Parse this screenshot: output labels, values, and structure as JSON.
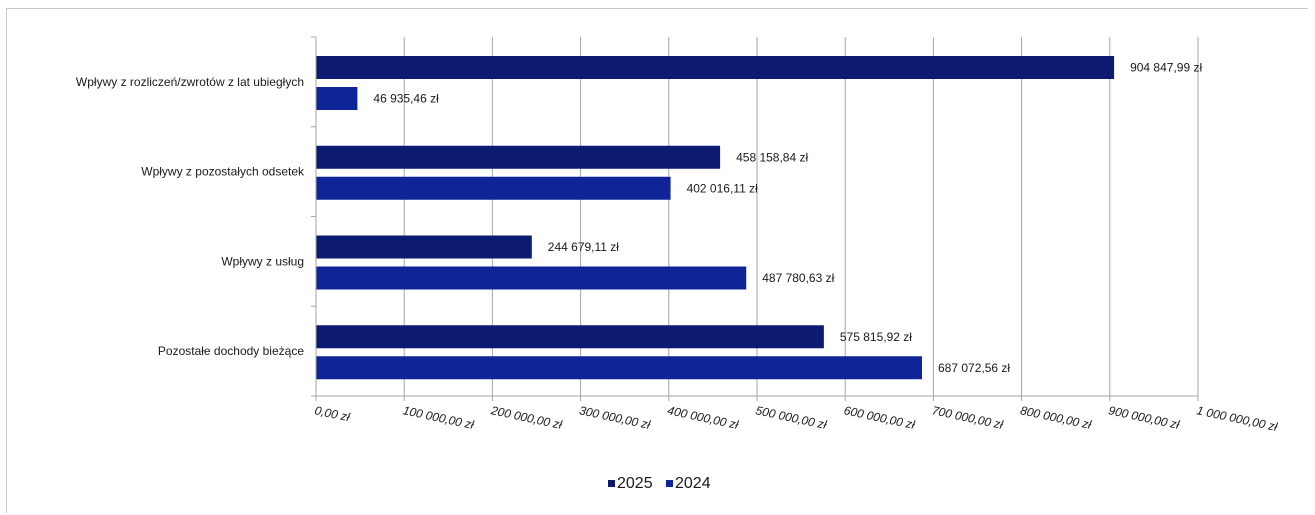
{
  "chart_data": {
    "type": "bar",
    "orientation": "horizontal",
    "categories": [
      "Wpływy z rozliczeń/zwrotów z lat ubiegłych",
      "Wpływy z pozostałych odsetek",
      "Wpływy z usług",
      "Pozostałe dochody bieżące"
    ],
    "series": [
      {
        "name": "2025",
        "color": "#0d1a72",
        "values": [
          904847.99,
          458158.84,
          244679.11,
          575815.92
        ],
        "labels": [
          "904 847,99  zł",
          "458 158,84  zł",
          "244 679,11  zł",
          "575 815,92  zł"
        ]
      },
      {
        "name": "2024",
        "color": "#0f2496",
        "values": [
          46935.46,
          402016.11,
          487780.63,
          687072.56
        ],
        "labels": [
          "46 935,46  zł",
          "402 016,11  zł",
          "487 780,63  zł",
          "687 072,56  zł"
        ]
      }
    ],
    "xlim": [
      0,
      1000000
    ],
    "xticks": [
      0,
      100000,
      200000,
      300000,
      400000,
      500000,
      600000,
      700000,
      800000,
      900000,
      1000000
    ],
    "xtick_labels": [
      "0,00  zł",
      "100 000,00  zł",
      "200 000,00  zł",
      "300 000,00  zł",
      "400 000,00  zł",
      "500 000,00  zł",
      "600 000,00  zł",
      "700 000,00  zł",
      "800 000,00  zł",
      "900 000,00  zł",
      "1 000 000,00  zł"
    ],
    "grid": true,
    "legend_position": "bottom"
  }
}
